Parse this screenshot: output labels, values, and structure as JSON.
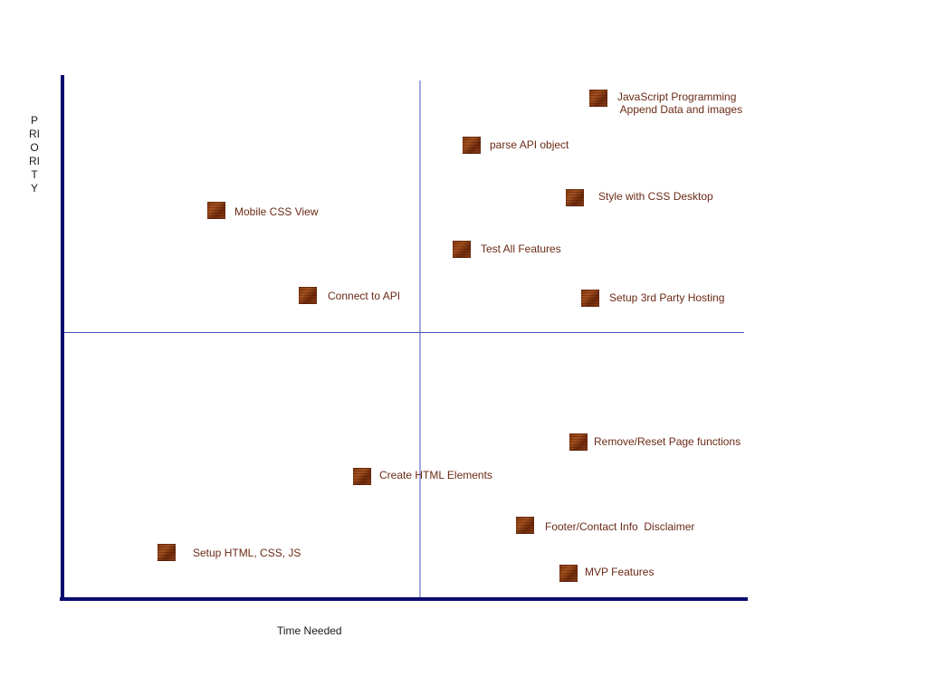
{
  "axes": {
    "y_label": "PRIORITY",
    "x_label": "Time Needed"
  },
  "tasks": [
    {
      "label": "JavaScript Programming\n Append Data and images"
    },
    {
      "label": "parse API object"
    },
    {
      "label": "Style with CSS Desktop"
    },
    {
      "label": "Mobile CSS View"
    },
    {
      "label": "Test All Features"
    },
    {
      "label": "Connect to API"
    },
    {
      "label": "Setup 3rd Party Hosting"
    },
    {
      "label": "Remove/Reset Page functions"
    },
    {
      "label": "Create HTML Elements"
    },
    {
      "label": "Footer/Contact Info  Disclaimer"
    },
    {
      "label": "Setup HTML, CSS, JS"
    },
    {
      "label": "MVP Features"
    }
  ],
  "colors": {
    "axis": "#0a0a6e",
    "divider": "#4a52b8",
    "label_text": "#6b2a16",
    "marker": "#8a3a12"
  }
}
